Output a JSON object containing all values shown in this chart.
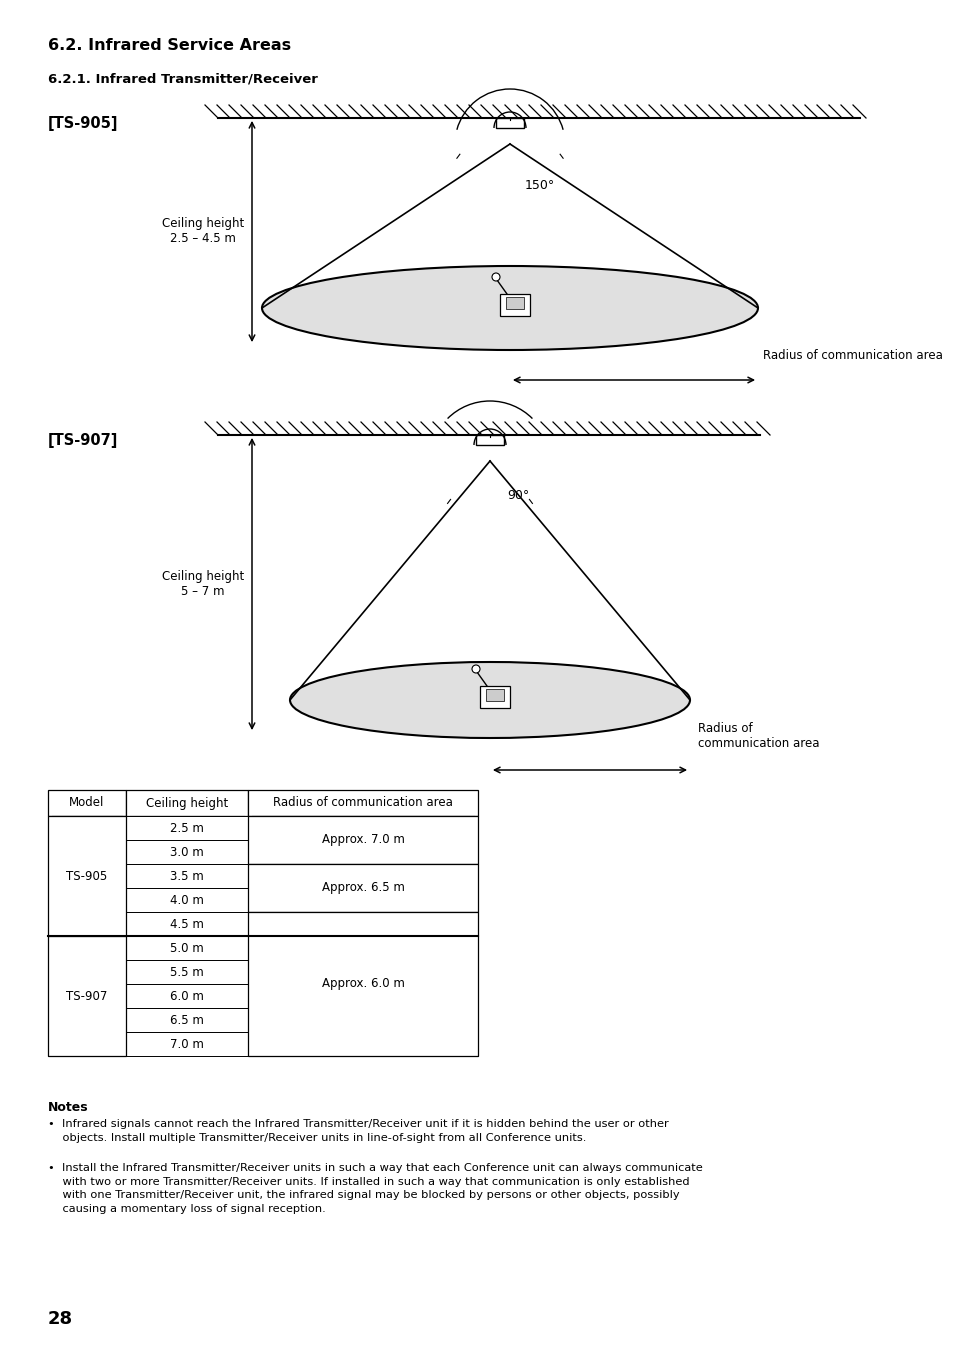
{
  "title_main": "6.2. Infrared Service Areas",
  "title_sub": "6.2.1. Infrared Transmitter/Receiver",
  "label_905": "[TS-905]",
  "label_907": "[TS-907]",
  "angle_905": "150°",
  "angle_907": "90°",
  "ceiling_905": "Ceiling height\n2.5 – 4.5 m",
  "ceiling_907": "Ceiling height\n5 – 7 m",
  "radius_label": "Radius of communication area",
  "radius_label_907": "Radius of\ncommunication area",
  "table_headers": [
    "Model",
    "Ceiling height",
    "Radius of communication area"
  ],
  "notes_title": "Notes",
  "note1": "•  Infrared signals cannot reach the Infrared Transmitter/Receiver unit if it is hidden behind the user or other\n    objects. Install multiple Transmitter/Receiver units in line-of-sight from all Conference units.",
  "note2": "•  Install the Infrared Transmitter/Receiver units in such a way that each Conference unit can always communicate\n    with two or more Transmitter/Receiver units. If installed in such a way that communication is only established\n    with one Transmitter/Receiver unit, the infrared signal may be blocked by persons or other objects, possibly\n    causing a momentary loss of signal reception.",
  "page_number": "28",
  "bg_color": "#ffffff",
  "text_color": "#000000",
  "ellipse_fill": "#e0e0e0",
  "ceiling_heights": [
    "2.5 m",
    "3.0 m",
    "3.5 m",
    "4.0 m",
    "4.5 m",
    "5.0 m",
    "5.5 m",
    "6.0 m",
    "6.5 m",
    "7.0 m"
  ],
  "model_spans": [
    [
      0,
      5,
      "TS-905"
    ],
    [
      5,
      10,
      "TS-907"
    ]
  ],
  "radius_spans": [
    [
      0,
      2,
      "Approx. 7.0 m"
    ],
    [
      2,
      4,
      "Approx. 6.5 m"
    ],
    [
      4,
      10,
      "Approx. 6.0 m"
    ]
  ]
}
